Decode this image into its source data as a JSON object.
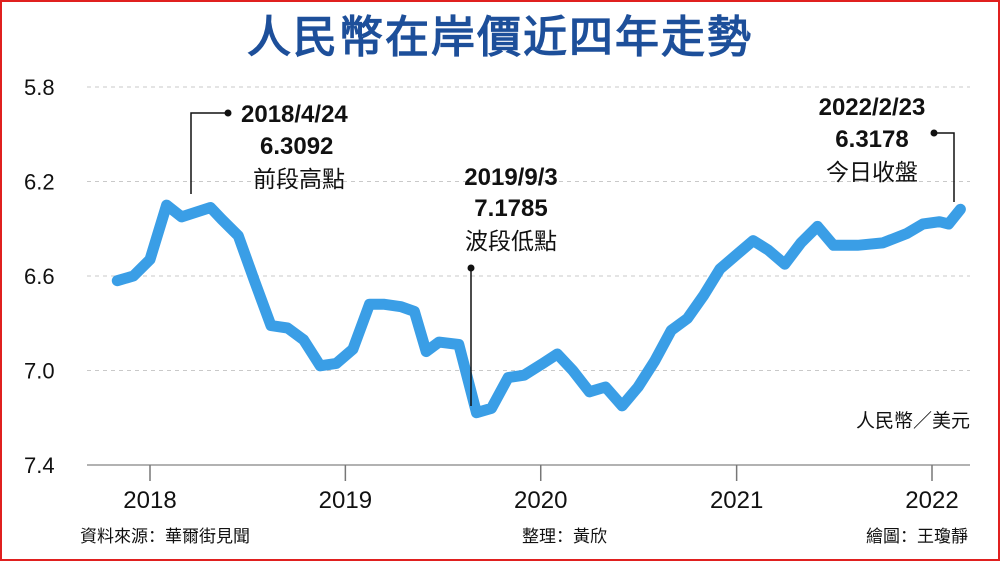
{
  "title": "人民幣在岸價近四年走勢",
  "footer": {
    "source": "資料來源：華爾街見聞",
    "editor": "整理：黃欣",
    "artist": "繪圖：王瓊靜"
  },
  "chart_data": {
    "type": "line",
    "unit_label": "人民幣／美元",
    "y_axis": {
      "inverted": true,
      "min": 5.8,
      "max": 7.4,
      "ticks": [
        "5.8",
        "6.2",
        "6.6",
        "7.0",
        "7.4"
      ],
      "grid": true
    },
    "x_axis": {
      "ticks": [
        "2018",
        "2019",
        "2020",
        "2021",
        "2022"
      ]
    },
    "line_color": "#3a9ee6",
    "series": [
      {
        "values": [
          [
            "2017-11-01",
            6.62
          ],
          [
            "2017-12-01",
            6.6
          ],
          [
            "2018-01-01",
            6.53
          ],
          [
            "2018-02-01",
            6.3
          ],
          [
            "2018-03-01",
            6.35
          ],
          [
            "2018-04-24",
            6.31
          ],
          [
            "2018-05-15",
            6.36
          ],
          [
            "2018-06-15",
            6.43
          ],
          [
            "2018-07-15",
            6.62
          ],
          [
            "2018-08-15",
            6.81
          ],
          [
            "2018-09-15",
            6.82
          ],
          [
            "2018-10-15",
            6.87
          ],
          [
            "2018-11-15",
            6.98
          ],
          [
            "2018-12-15",
            6.97
          ],
          [
            "2019-01-15",
            6.91
          ],
          [
            "2019-02-15",
            6.72
          ],
          [
            "2019-03-15",
            6.72
          ],
          [
            "2019-04-15",
            6.73
          ],
          [
            "2019-05-10",
            6.75
          ],
          [
            "2019-06-01",
            6.92
          ],
          [
            "2019-06-25",
            6.88
          ],
          [
            "2019-08-01",
            6.89
          ],
          [
            "2019-09-03",
            7.1785
          ],
          [
            "2019-10-01",
            7.16
          ],
          [
            "2019-11-01",
            7.03
          ],
          [
            "2019-12-01",
            7.02
          ],
          [
            "2020-01-05",
            6.97
          ],
          [
            "2020-02-01",
            6.93
          ],
          [
            "2020-03-01",
            7.0
          ],
          [
            "2020-04-01",
            7.09
          ],
          [
            "2020-05-01",
            7.07
          ],
          [
            "2020-06-01",
            7.15
          ],
          [
            "2020-07-01",
            7.07
          ],
          [
            "2020-08-01",
            6.96
          ],
          [
            "2020-09-01",
            6.83
          ],
          [
            "2020-10-01",
            6.78
          ],
          [
            "2020-11-01",
            6.68
          ],
          [
            "2020-12-01",
            6.57
          ],
          [
            "2021-01-01",
            6.51
          ],
          [
            "2021-02-01",
            6.45
          ],
          [
            "2021-03-01",
            6.49
          ],
          [
            "2021-04-01",
            6.55
          ],
          [
            "2021-05-01",
            6.46
          ],
          [
            "2021-06-01",
            6.39
          ],
          [
            "2021-07-01",
            6.47
          ],
          [
            "2021-08-15",
            6.47
          ],
          [
            "2021-10-01",
            6.46
          ],
          [
            "2021-11-15",
            6.42
          ],
          [
            "2021-12-15",
            6.38
          ],
          [
            "2022-01-15",
            6.37
          ],
          [
            "2022-02-01",
            6.38
          ],
          [
            "2022-02-23",
            6.3178
          ]
        ]
      }
    ],
    "annotations": [
      {
        "date": "2018/4/24",
        "value": "6.3092",
        "label": "前段高點"
      },
      {
        "date": "2019/9/3",
        "value": "7.1785",
        "label": "波段低點"
      },
      {
        "date": "2022/2/23",
        "value": "6.3178",
        "label": "今日收盤"
      }
    ]
  }
}
